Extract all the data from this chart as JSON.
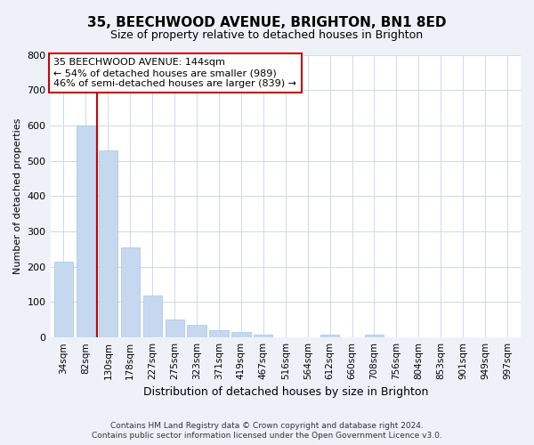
{
  "title": "35, BEECHWOOD AVENUE, BRIGHTON, BN1 8ED",
  "subtitle": "Size of property relative to detached houses in Brighton",
  "xlabel": "Distribution of detached houses by size in Brighton",
  "ylabel": "Number of detached properties",
  "bar_labels": [
    "34sqm",
    "82sqm",
    "130sqm",
    "178sqm",
    "227sqm",
    "275sqm",
    "323sqm",
    "371sqm",
    "419sqm",
    "467sqm",
    "516sqm",
    "564sqm",
    "612sqm",
    "660sqm",
    "708sqm",
    "756sqm",
    "804sqm",
    "853sqm",
    "901sqm",
    "949sqm",
    "997sqm"
  ],
  "bar_values": [
    215,
    600,
    530,
    255,
    118,
    50,
    35,
    20,
    15,
    8,
    0,
    0,
    8,
    0,
    8,
    0,
    0,
    0,
    0,
    0,
    0
  ],
  "bar_color": "#c5d8f0",
  "bar_edge_color": "#a8c4e0",
  "property_line_x": 2.0,
  "property_line_color": "#cc0000",
  "annotation_text": "35 BEECHWOOD AVENUE: 144sqm\n← 54% of detached houses are smaller (989)\n46% of semi-detached houses are larger (839) →",
  "annotation_box_color": "#ffffff",
  "annotation_box_edge": "#cc0000",
  "ylim": [
    0,
    800
  ],
  "yticks": [
    0,
    100,
    200,
    300,
    400,
    500,
    600,
    700,
    800
  ],
  "footer_line1": "Contains HM Land Registry data © Crown copyright and database right 2024.",
  "footer_line2": "Contains public sector information licensed under the Open Government Licence v3.0.",
  "bg_color": "#eef2f8",
  "plot_bg_color": "#ffffff",
  "grid_color": "#d0d8e8",
  "title_fontsize": 11,
  "subtitle_fontsize": 9,
  "ylabel_fontsize": 8,
  "xlabel_fontsize": 9,
  "tick_fontsize": 7.5,
  "ytick_fontsize": 8,
  "footer_fontsize": 6.5
}
